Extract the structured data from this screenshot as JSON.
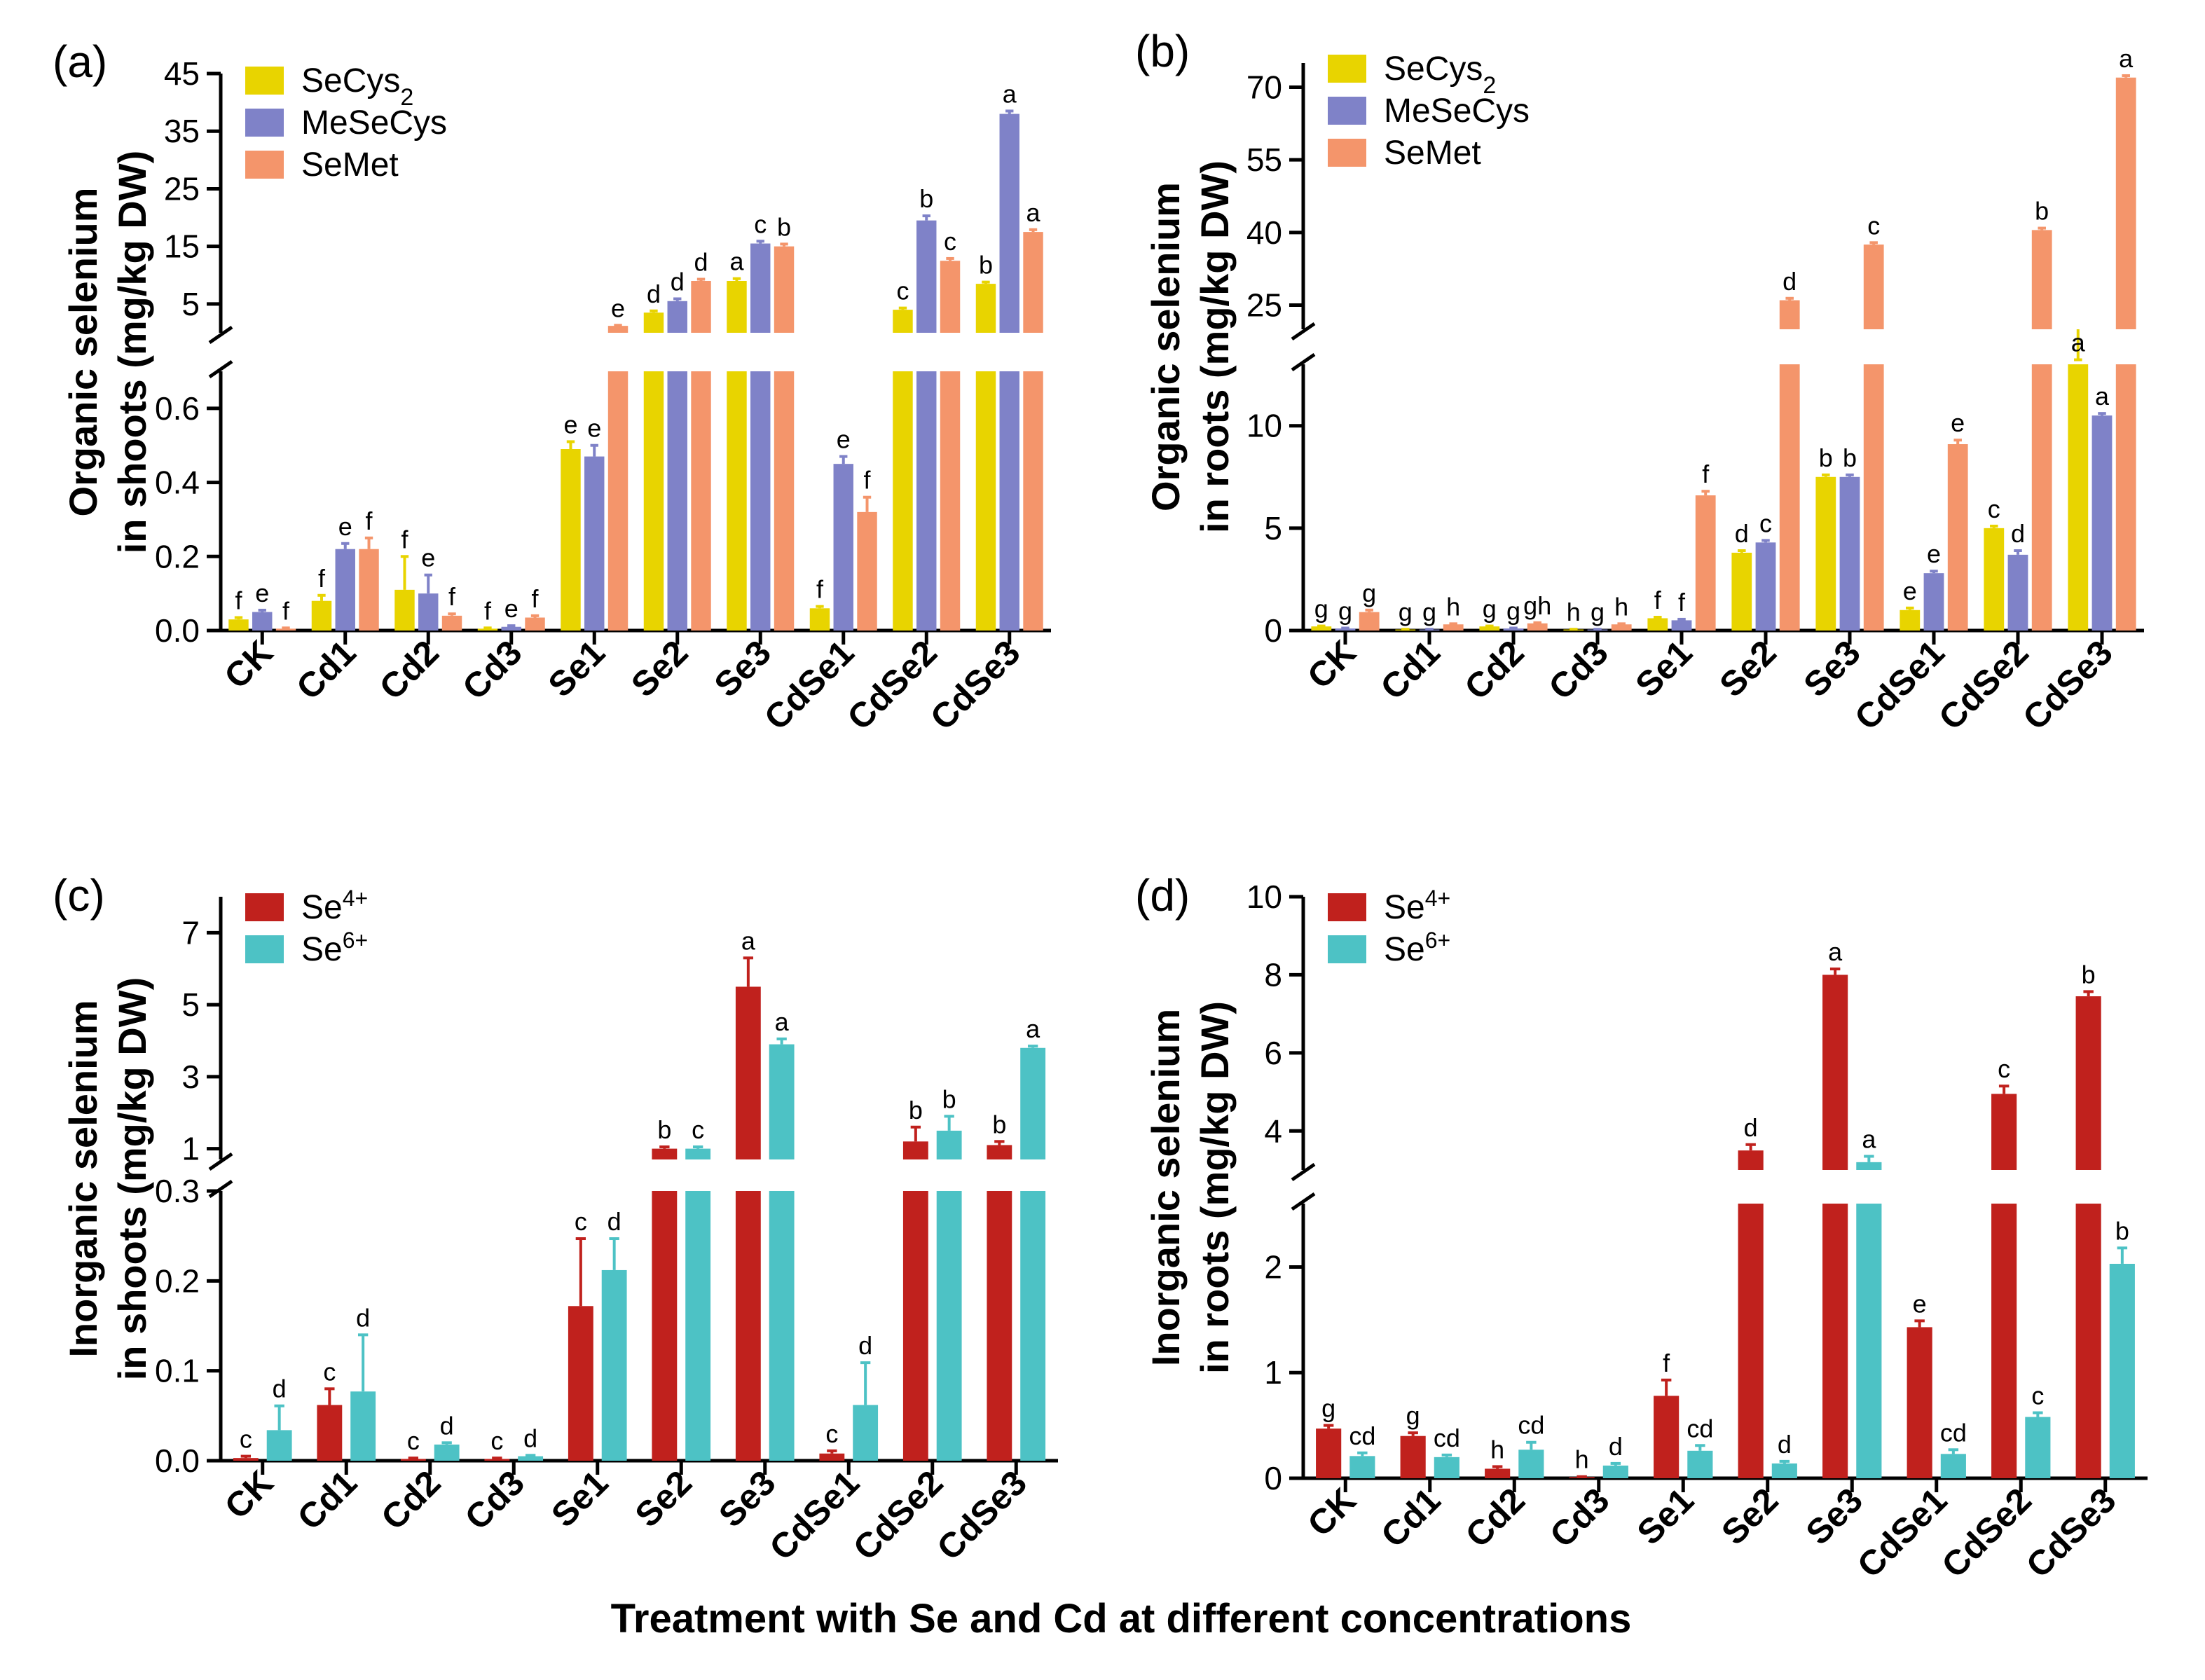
{
  "figure_title": "Treatment with Se and Cd at different concentrations",
  "chart_data": [
    {
      "panel": "(a)",
      "type": "bar",
      "ylabel_line1": "Organic selenium",
      "ylabel_line2": "in shoots (mg/kg DW)",
      "categories": [
        "CK",
        "Cd1",
        "Cd2",
        "Cd3",
        "Se1",
        "Se2",
        "Se3",
        "CdSe1",
        "CdSe2",
        "CdSe3"
      ],
      "axis_break": true,
      "lower_ylim": [
        0,
        0.7
      ],
      "lower_ticks": [
        0.0,
        0.2,
        0.4,
        0.6
      ],
      "lower_tick_labels": [
        "0.0",
        "0.2",
        "0.4",
        "0.6"
      ],
      "upper_ylim": [
        0,
        45
      ],
      "upper_ticks": [
        5,
        15,
        25,
        35,
        45
      ],
      "upper_tick_labels": [
        "5",
        "15",
        "25",
        "35",
        "45"
      ],
      "series": [
        {
          "name": "SeCys",
          "subscript": "2",
          "color": "#E8D400",
          "values": [
            0.03,
            0.08,
            0.11,
            0.005,
            0.49,
            3.5,
            9.0,
            0.06,
            4.0,
            8.5
          ],
          "errors": [
            0.005,
            0.015,
            0.09,
            0.002,
            0.02,
            0.3,
            0.4,
            0.005,
            0.3,
            0.3
          ],
          "labels": [
            "f",
            "f",
            "f",
            "f",
            "e",
            "d",
            "a",
            "f",
            "c",
            "b"
          ]
        },
        {
          "name": "MeSeCys",
          "subscript": "",
          "color": "#7F82C8",
          "values": [
            0.05,
            0.22,
            0.1,
            0.01,
            0.47,
            5.5,
            15.5,
            0.45,
            19.5,
            38.0
          ],
          "errors": [
            0.005,
            0.015,
            0.05,
            0.003,
            0.03,
            0.4,
            0.4,
            0.02,
            0.8,
            0.5
          ],
          "labels": [
            "e",
            "e",
            "e",
            "e",
            "e",
            "d",
            "c",
            "e",
            "b",
            "a"
          ]
        },
        {
          "name": "SeMet",
          "subscript": "",
          "color": "#F4956B",
          "values": [
            0.005,
            0.22,
            0.04,
            0.035,
            1.2,
            9.0,
            15.0,
            0.32,
            12.5,
            17.5
          ],
          "errors": [
            0.002,
            0.03,
            0.005,
            0.005,
            0.1,
            0.3,
            0.4,
            0.04,
            0.4,
            0.4
          ],
          "labels": [
            "f",
            "f",
            "f",
            "f",
            "e",
            "d",
            "b",
            "f",
            "c",
            "a"
          ]
        }
      ]
    },
    {
      "panel": "(b)",
      "type": "bar",
      "ylabel_line1": "Organic selenium",
      "ylabel_line2": "in roots (mg/kg DW)",
      "categories": [
        "CK",
        "Cd1",
        "Cd2",
        "Cd3",
        "Se1",
        "Se2",
        "Se3",
        "CdSe1",
        "CdSe2",
        "CdSe3"
      ],
      "axis_break": true,
      "lower_ylim": [
        0,
        13
      ],
      "lower_ticks": [
        0,
        5,
        10
      ],
      "lower_tick_labels": [
        "0",
        "5",
        "10"
      ],
      "upper_ylim": [
        20,
        75
      ],
      "upper_ticks": [
        25,
        40,
        55,
        70
      ],
      "upper_tick_labels": [
        "25",
        "40",
        "55",
        "70"
      ],
      "series": [
        {
          "name": "SeCys",
          "subscript": "2",
          "color": "#E8D400",
          "values": [
            0.2,
            0.05,
            0.2,
            0.05,
            0.6,
            3.8,
            7.5,
            1.0,
            5.0,
            13.5
          ],
          "errors": [
            0.02,
            0.01,
            0.02,
            0.01,
            0.05,
            0.1,
            0.1,
            0.1,
            0.1,
            0.2
          ],
          "labels": [
            "g",
            "g",
            "g",
            "h",
            "f",
            "d",
            "b",
            "e",
            "c",
            "a"
          ]
        },
        {
          "name": "MeSeCys",
          "subscript": "",
          "color": "#7F82C8",
          "values": [
            0.1,
            0.05,
            0.1,
            0.05,
            0.5,
            4.3,
            7.5,
            2.8,
            3.7,
            10.5
          ],
          "errors": [
            0.02,
            0.01,
            0.02,
            0.01,
            0.05,
            0.1,
            0.1,
            0.1,
            0.2,
            0.1
          ],
          "labels": [
            "g",
            "g",
            "g",
            "g",
            "f",
            "c",
            "b",
            "e",
            "d",
            "a"
          ]
        },
        {
          "name": "SeMet",
          "subscript": "",
          "color": "#F4956B",
          "values": [
            0.9,
            0.3,
            0.35,
            0.3,
            6.6,
            26.0,
            37.5,
            9.1,
            40.5,
            72.0
          ],
          "errors": [
            0.1,
            0.03,
            0.03,
            0.03,
            0.2,
            0.4,
            0.4,
            0.2,
            0.4,
            0.4
          ],
          "labels": [
            "g",
            "h",
            "gh",
            "h",
            "f",
            "d",
            "c",
            "e",
            "b",
            "a"
          ]
        }
      ]
    },
    {
      "panel": "(c)",
      "type": "bar",
      "ylabel_line1": "Inorganic selenium",
      "ylabel_line2": "in shoots (mg/kg DW)",
      "categories": [
        "CK",
        "Cd1",
        "Cd2",
        "Cd3",
        "Se1",
        "Se2",
        "Se3",
        "CdSe1",
        "CdSe2",
        "CdSe3"
      ],
      "axis_break": true,
      "lower_ylim": [
        0,
        0.3
      ],
      "lower_ticks": [
        0.0,
        0.1,
        0.2,
        0.3
      ],
      "lower_tick_labels": [
        "0.0",
        "0.1",
        "0.2",
        "0.3"
      ],
      "upper_ylim": [
        0.7,
        8
      ],
      "upper_ticks": [
        1,
        3,
        5,
        7
      ],
      "upper_tick_labels": [
        "1",
        "3",
        "5",
        "7"
      ],
      "series": [
        {
          "name": "Se",
          "superscript": "4+",
          "color": "#C0211D",
          "values": [
            0.003,
            0.062,
            0.002,
            0.002,
            0.172,
            1.0,
            5.5,
            0.008,
            1.2,
            1.1
          ],
          "errors": [
            0.002,
            0.018,
            0.001,
            0.001,
            0.075,
            0.05,
            0.8,
            0.003,
            0.4,
            0.1
          ],
          "labels": [
            "c",
            "c",
            "c",
            "c",
            "c",
            "b",
            "a",
            "c",
            "b",
            "b"
          ]
        },
        {
          "name": "Se",
          "superscript": "6+",
          "color": "#4DC2C5",
          "values": [
            0.034,
            0.077,
            0.018,
            0.005,
            0.212,
            1.0,
            3.9,
            0.062,
            1.5,
            3.8
          ],
          "errors": [
            0.027,
            0.063,
            0.002,
            0.001,
            0.035,
            0.05,
            0.15,
            0.047,
            0.4,
            0.05
          ],
          "labels": [
            "d",
            "d",
            "d",
            "d",
            "d",
            "c",
            "a",
            "d",
            "b",
            "a"
          ]
        }
      ]
    },
    {
      "panel": "(d)",
      "type": "bar",
      "ylabel_line1": "Inorganic selenium",
      "ylabel_line2": "in roots (mg/kg DW)",
      "categories": [
        "CK",
        "Cd1",
        "Cd2",
        "Cd3",
        "Se1",
        "Se2",
        "Se3",
        "CdSe1",
        "CdSe2",
        "CdSe3"
      ],
      "axis_break": true,
      "lower_ylim": [
        0,
        2.6
      ],
      "lower_ticks": [
        0,
        1,
        2
      ],
      "lower_tick_labels": [
        "0",
        "1",
        "2"
      ],
      "upper_ylim": [
        3,
        10
      ],
      "upper_ticks": [
        4,
        6,
        8,
        10
      ],
      "upper_tick_labels": [
        "4",
        "6",
        "8",
        "10"
      ],
      "series": [
        {
          "name": "Se",
          "superscript": "4+",
          "color": "#C0211D",
          "values": [
            0.47,
            0.4,
            0.09,
            0.01,
            0.78,
            3.5,
            8.0,
            1.43,
            4.95,
            7.45
          ],
          "errors": [
            0.03,
            0.03,
            0.02,
            0.005,
            0.15,
            0.15,
            0.15,
            0.06,
            0.2,
            0.12
          ],
          "labels": [
            "g",
            "g",
            "h",
            "h",
            "f",
            "d",
            "a",
            "e",
            "c",
            "b"
          ]
        },
        {
          "name": "Se",
          "superscript": "6+",
          "color": "#4DC2C5",
          "values": [
            0.21,
            0.2,
            0.27,
            0.12,
            0.26,
            0.14,
            3.2,
            0.23,
            0.58,
            2.03
          ],
          "errors": [
            0.03,
            0.02,
            0.07,
            0.02,
            0.05,
            0.02,
            0.15,
            0.04,
            0.04,
            0.15
          ],
          "labels": [
            "cd",
            "cd",
            "cd",
            "d",
            "cd",
            "d",
            "a",
            "cd",
            "c",
            "b"
          ]
        }
      ]
    }
  ]
}
